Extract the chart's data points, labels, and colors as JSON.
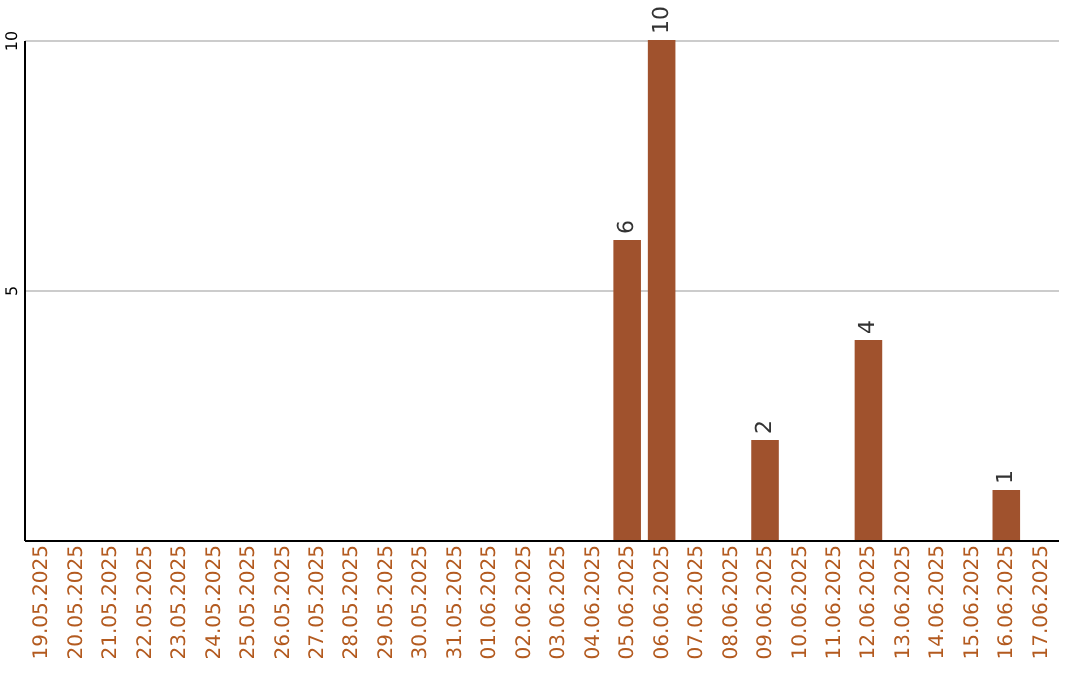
{
  "chart_data": {
    "type": "bar",
    "categories": [
      "19.05.2025",
      "20.05.2025",
      "21.05.2025",
      "22.05.2025",
      "23.05.2025",
      "24.05.2025",
      "25.05.2025",
      "26.05.2025",
      "27.05.2025",
      "28.05.2025",
      "29.05.2025",
      "30.05.2025",
      "31.05.2025",
      "01.06.2025",
      "02.06.2025",
      "03.06.2025",
      "04.06.2025",
      "05.06.2025",
      "06.06.2025",
      "07.06.2025",
      "08.06.2025",
      "09.06.2025",
      "10.06.2025",
      "11.06.2025",
      "12.06.2025",
      "13.06.2025",
      "14.06.2025",
      "15.06.2025",
      "16.06.2025",
      "17.06.2025"
    ],
    "values": [
      0,
      0,
      0,
      0,
      0,
      0,
      0,
      0,
      0,
      0,
      0,
      0,
      0,
      0,
      0,
      0,
      0,
      6,
      10,
      0,
      0,
      2,
      0,
      0,
      4,
      0,
      0,
      0,
      1,
      0
    ],
    "value_labels": [
      null,
      null,
      null,
      null,
      null,
      null,
      null,
      null,
      null,
      null,
      null,
      null,
      null,
      null,
      null,
      null,
      null,
      "6",
      "10",
      null,
      null,
      "2",
      null,
      null,
      "4",
      null,
      null,
      null,
      "1",
      null
    ],
    "color": "#a0522d",
    "ylim": [
      0,
      10
    ],
    "yticks": [
      5,
      10
    ],
    "grid": "y"
  }
}
